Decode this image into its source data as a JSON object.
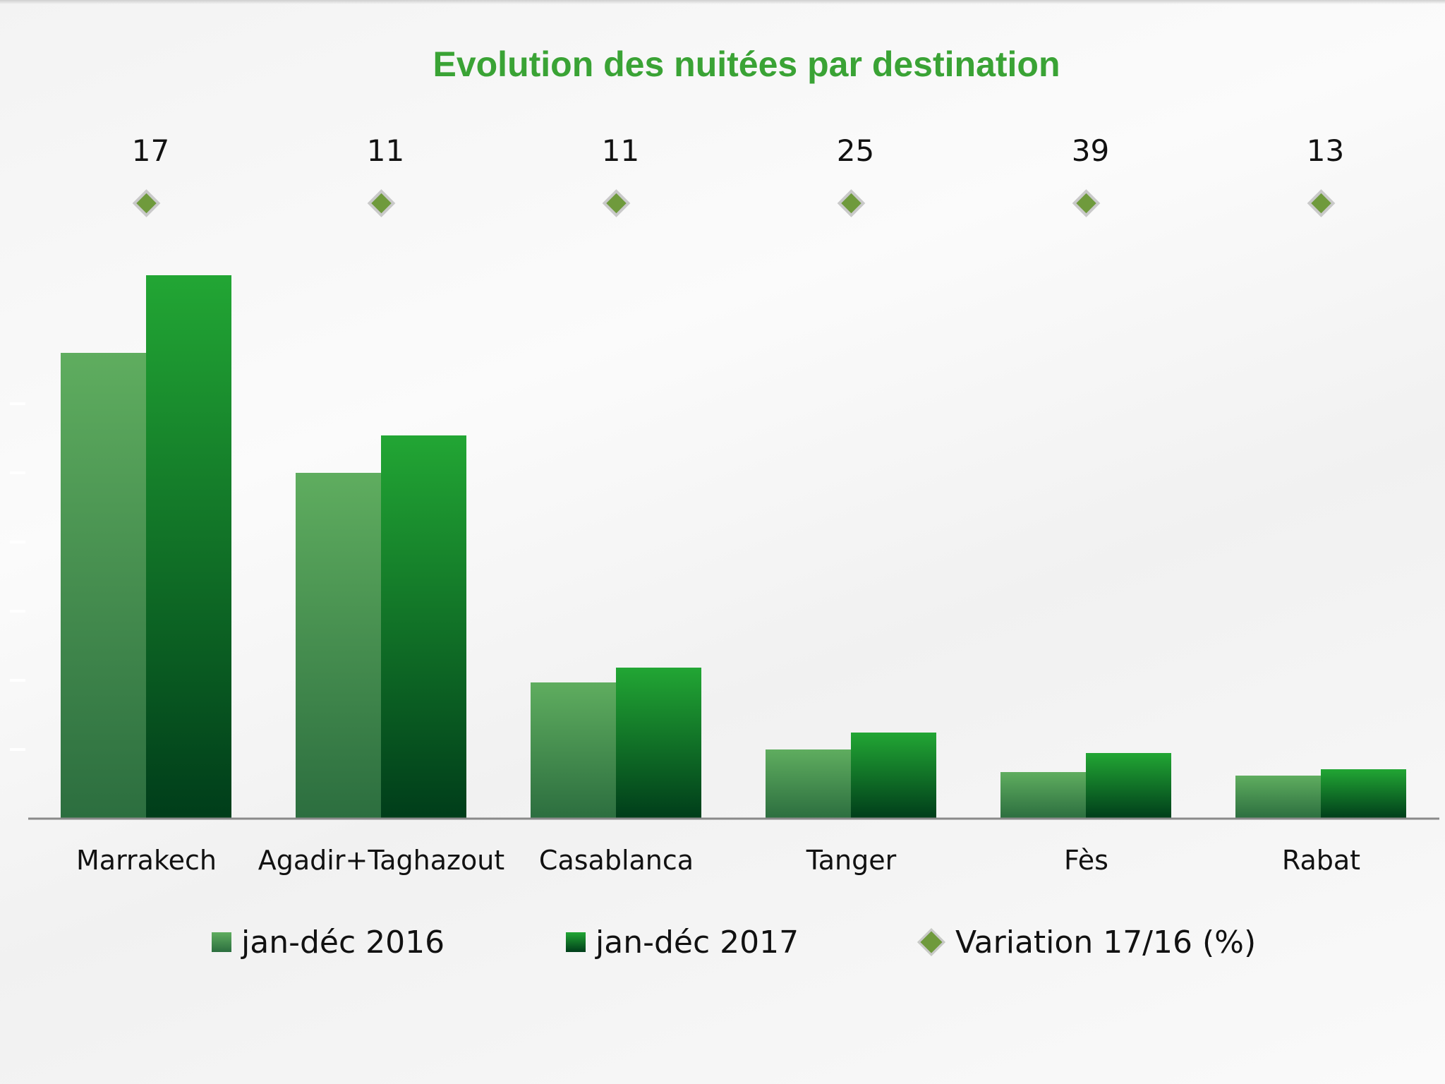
{
  "chart_data": {
    "type": "bar",
    "title": "Evolution des nuitées par destination",
    "categories": [
      "Marrakech",
      "Agadir+Taghazout",
      "Casablanca",
      "Tanger",
      "Fès",
      "Rabat"
    ],
    "series": [
      {
        "name": "jan-déc 2016",
        "kind": "bar",
        "color": "#5fad5f",
        "values": [
          6.6,
          4.9,
          1.93,
          0.98,
          0.66,
          0.61
        ]
      },
      {
        "name": "jan-déc 2017",
        "kind": "bar",
        "color": "#22a634",
        "values": [
          7.7,
          5.43,
          2.14,
          1.22,
          0.93,
          0.7
        ]
      },
      {
        "name": "Variation 17/16 (%)",
        "kind": "marker",
        "color": "#6f9a3c",
        "values": [
          17,
          11,
          11,
          25,
          39,
          13
        ]
      }
    ],
    "ylim": [
      0,
      10
    ],
    "grid": false,
    "legend": "bottom"
  }
}
